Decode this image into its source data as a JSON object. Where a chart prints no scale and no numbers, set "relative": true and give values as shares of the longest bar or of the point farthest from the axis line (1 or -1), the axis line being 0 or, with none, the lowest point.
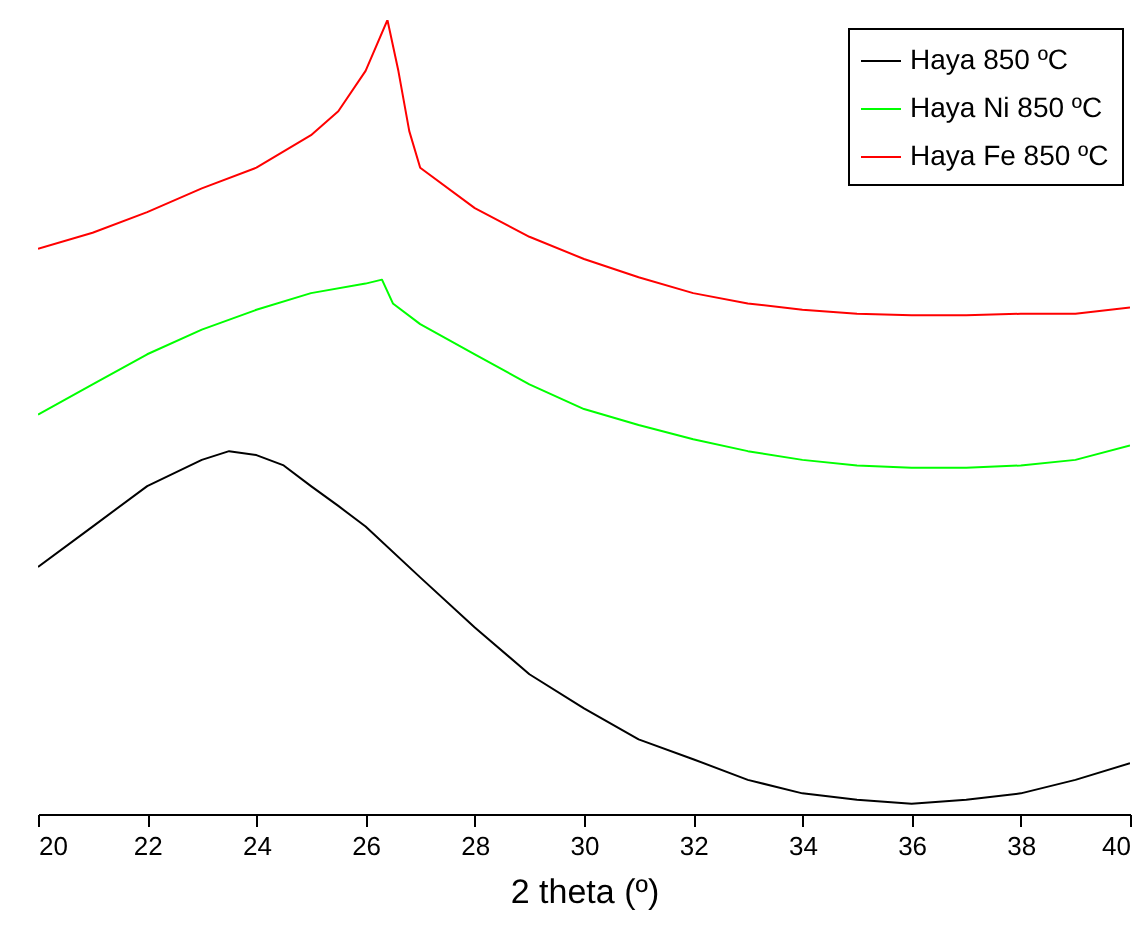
{
  "chart_data": {
    "type": "line",
    "xlabel": "2 theta (º)",
    "relative": true,
    "xlim": [
      20,
      40
    ],
    "xticks": [
      20,
      22,
      24,
      26,
      28,
      30,
      32,
      34,
      36,
      38,
      40
    ],
    "legend": "top right",
    "grid": false,
    "series": [
      {
        "name": "Haya 850 ºC",
        "color": "#000000",
        "x": [
          20,
          21,
          22,
          23,
          23.5,
          24,
          24.5,
          25,
          25.5,
          26,
          27,
          28,
          29,
          30,
          31,
          32,
          33,
          34,
          35,
          36,
          37,
          38,
          39,
          40
        ],
        "values": [
          0.311,
          0.362,
          0.413,
          0.446,
          0.457,
          0.452,
          0.439,
          0.413,
          0.388,
          0.362,
          0.298,
          0.235,
          0.176,
          0.133,
          0.094,
          0.069,
          0.043,
          0.026,
          0.018,
          0.013,
          0.018,
          0.026,
          0.043,
          0.064
        ]
      },
      {
        "name": "Haya Ni 850 ºC",
        "color": "#00ff00",
        "x": [
          20,
          21,
          22,
          23,
          24,
          25,
          26,
          26.3,
          26.5,
          27,
          28,
          29,
          30,
          31,
          32,
          33,
          34,
          35,
          36,
          37,
          38,
          39,
          40
        ],
        "values": [
          0.503,
          0.541,
          0.579,
          0.61,
          0.635,
          0.656,
          0.668,
          0.673,
          0.643,
          0.617,
          0.579,
          0.541,
          0.51,
          0.49,
          0.472,
          0.457,
          0.446,
          0.439,
          0.436,
          0.436,
          0.439,
          0.446,
          0.464
        ]
      },
      {
        "name": "Haya Fe 850 ºC",
        "color": "#ff0000",
        "x": [
          20,
          21,
          22,
          23,
          24,
          25,
          25.5,
          26,
          26.4,
          26.6,
          26.8,
          27,
          28,
          29,
          30,
          31,
          32,
          33,
          34,
          35,
          36,
          37,
          38,
          39,
          40
        ],
        "values": [
          0.712,
          0.732,
          0.758,
          0.788,
          0.814,
          0.855,
          0.885,
          0.936,
          1,
          0.936,
          0.86,
          0.814,
          0.763,
          0.727,
          0.699,
          0.676,
          0.656,
          0.643,
          0.635,
          0.63,
          0.628,
          0.628,
          0.63,
          0.63,
          0.638
        ]
      }
    ]
  }
}
